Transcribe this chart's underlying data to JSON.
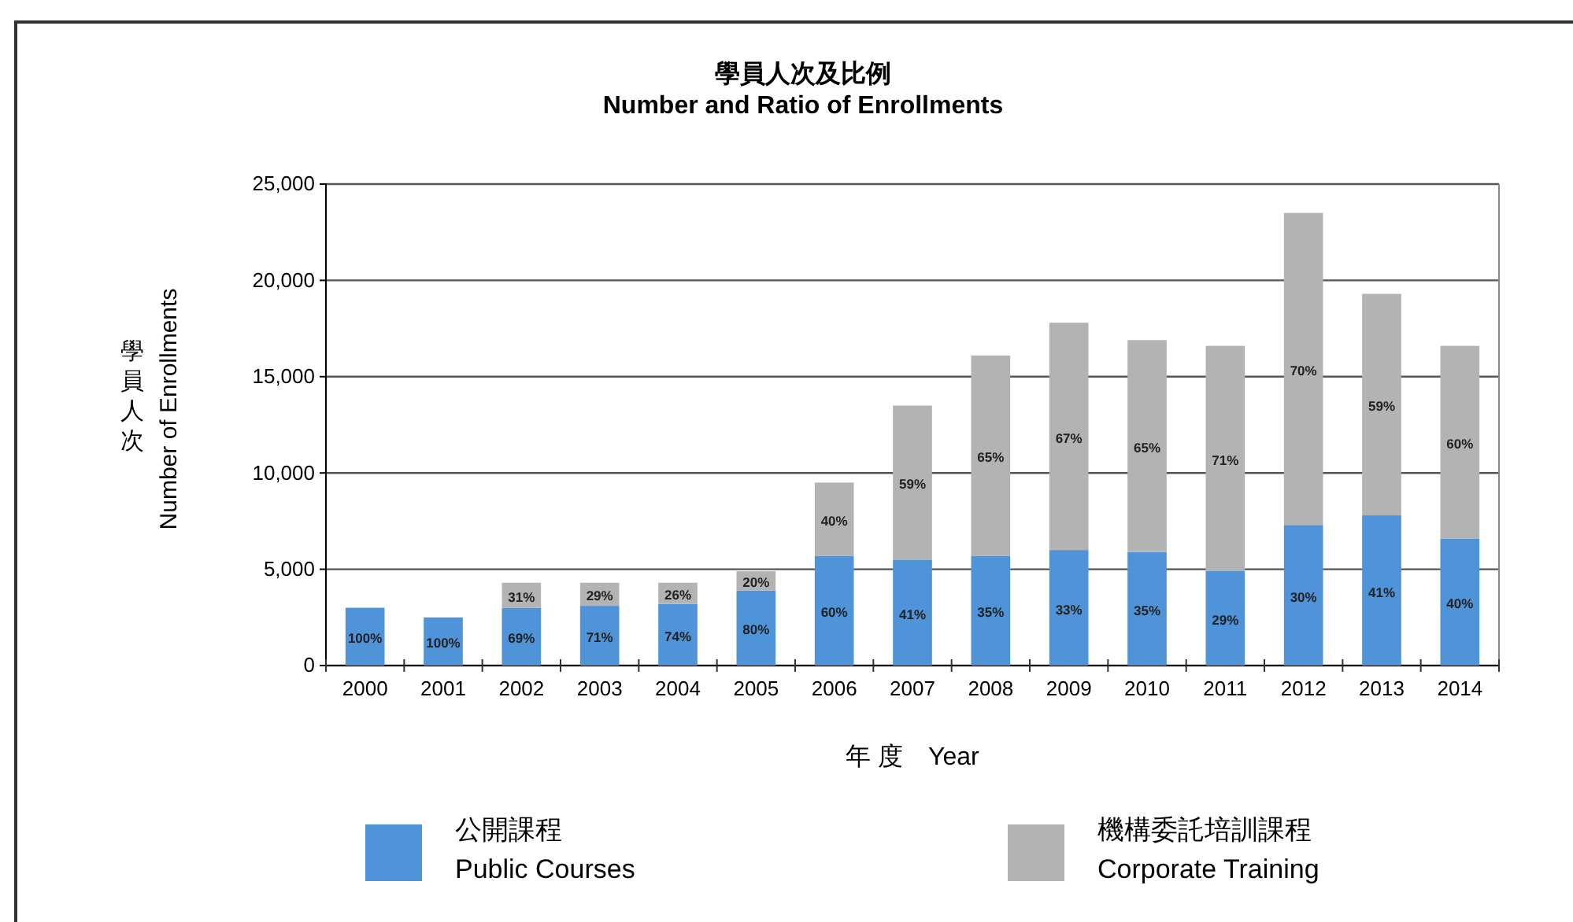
{
  "chart_data": {
    "type": "bar",
    "stacked": true,
    "title": "學員人次及比例\nNumber and Ratio of Enrollments",
    "xlabel": "年 度　Year",
    "ylabel": "學員人次\nNumber of Enrollments",
    "categories": [
      "2000",
      "2001",
      "2002",
      "2003",
      "2004",
      "2005",
      "2006",
      "2007",
      "2008",
      "2009",
      "2010",
      "2011",
      "2012",
      "2013",
      "2014"
    ],
    "series": [
      {
        "name": "公開課程\nPublic Courses",
        "color": "#4f93d8",
        "values": [
          3000,
          2500,
          3000,
          3100,
          3200,
          3900,
          5700,
          5500,
          5700,
          6000,
          5900,
          4900,
          7300,
          7800,
          6600
        ]
      },
      {
        "name": "機構委託培訓課程\nCorporate Training",
        "color": "#b3b3b3",
        "values": [
          null,
          null,
          1300,
          1200,
          1100,
          1000,
          3800,
          8000,
          10400,
          11800,
          11000,
          11700,
          16200,
          11500,
          10000
        ]
      }
    ],
    "annotations": [
      "100%",
      "100%",
      "69%",
      "71%",
      "74%",
      "80%",
      "60%",
      "41%",
      "35%",
      "33%",
      "35%",
      "29%",
      "30%",
      "41%",
      "40%",
      "31%",
      "29%",
      "26%",
      "20%",
      "40%",
      "59%",
      "65%",
      "67%",
      "65%",
      "71%",
      "70%",
      "59%",
      "60%"
    ],
    "ylim": [
      0,
      25000
    ],
    "yticks": [
      {
        "value": 0,
        "label": "0"
      },
      {
        "value": 5000,
        "label": "5,000"
      },
      {
        "value": 10000,
        "label": "10,000"
      },
      {
        "value": 15000,
        "label": "15,000"
      },
      {
        "value": 20000,
        "label": "20,000"
      },
      {
        "value": 25000,
        "label": "25,000"
      }
    ],
    "grid": "y",
    "legend": "bottom"
  }
}
